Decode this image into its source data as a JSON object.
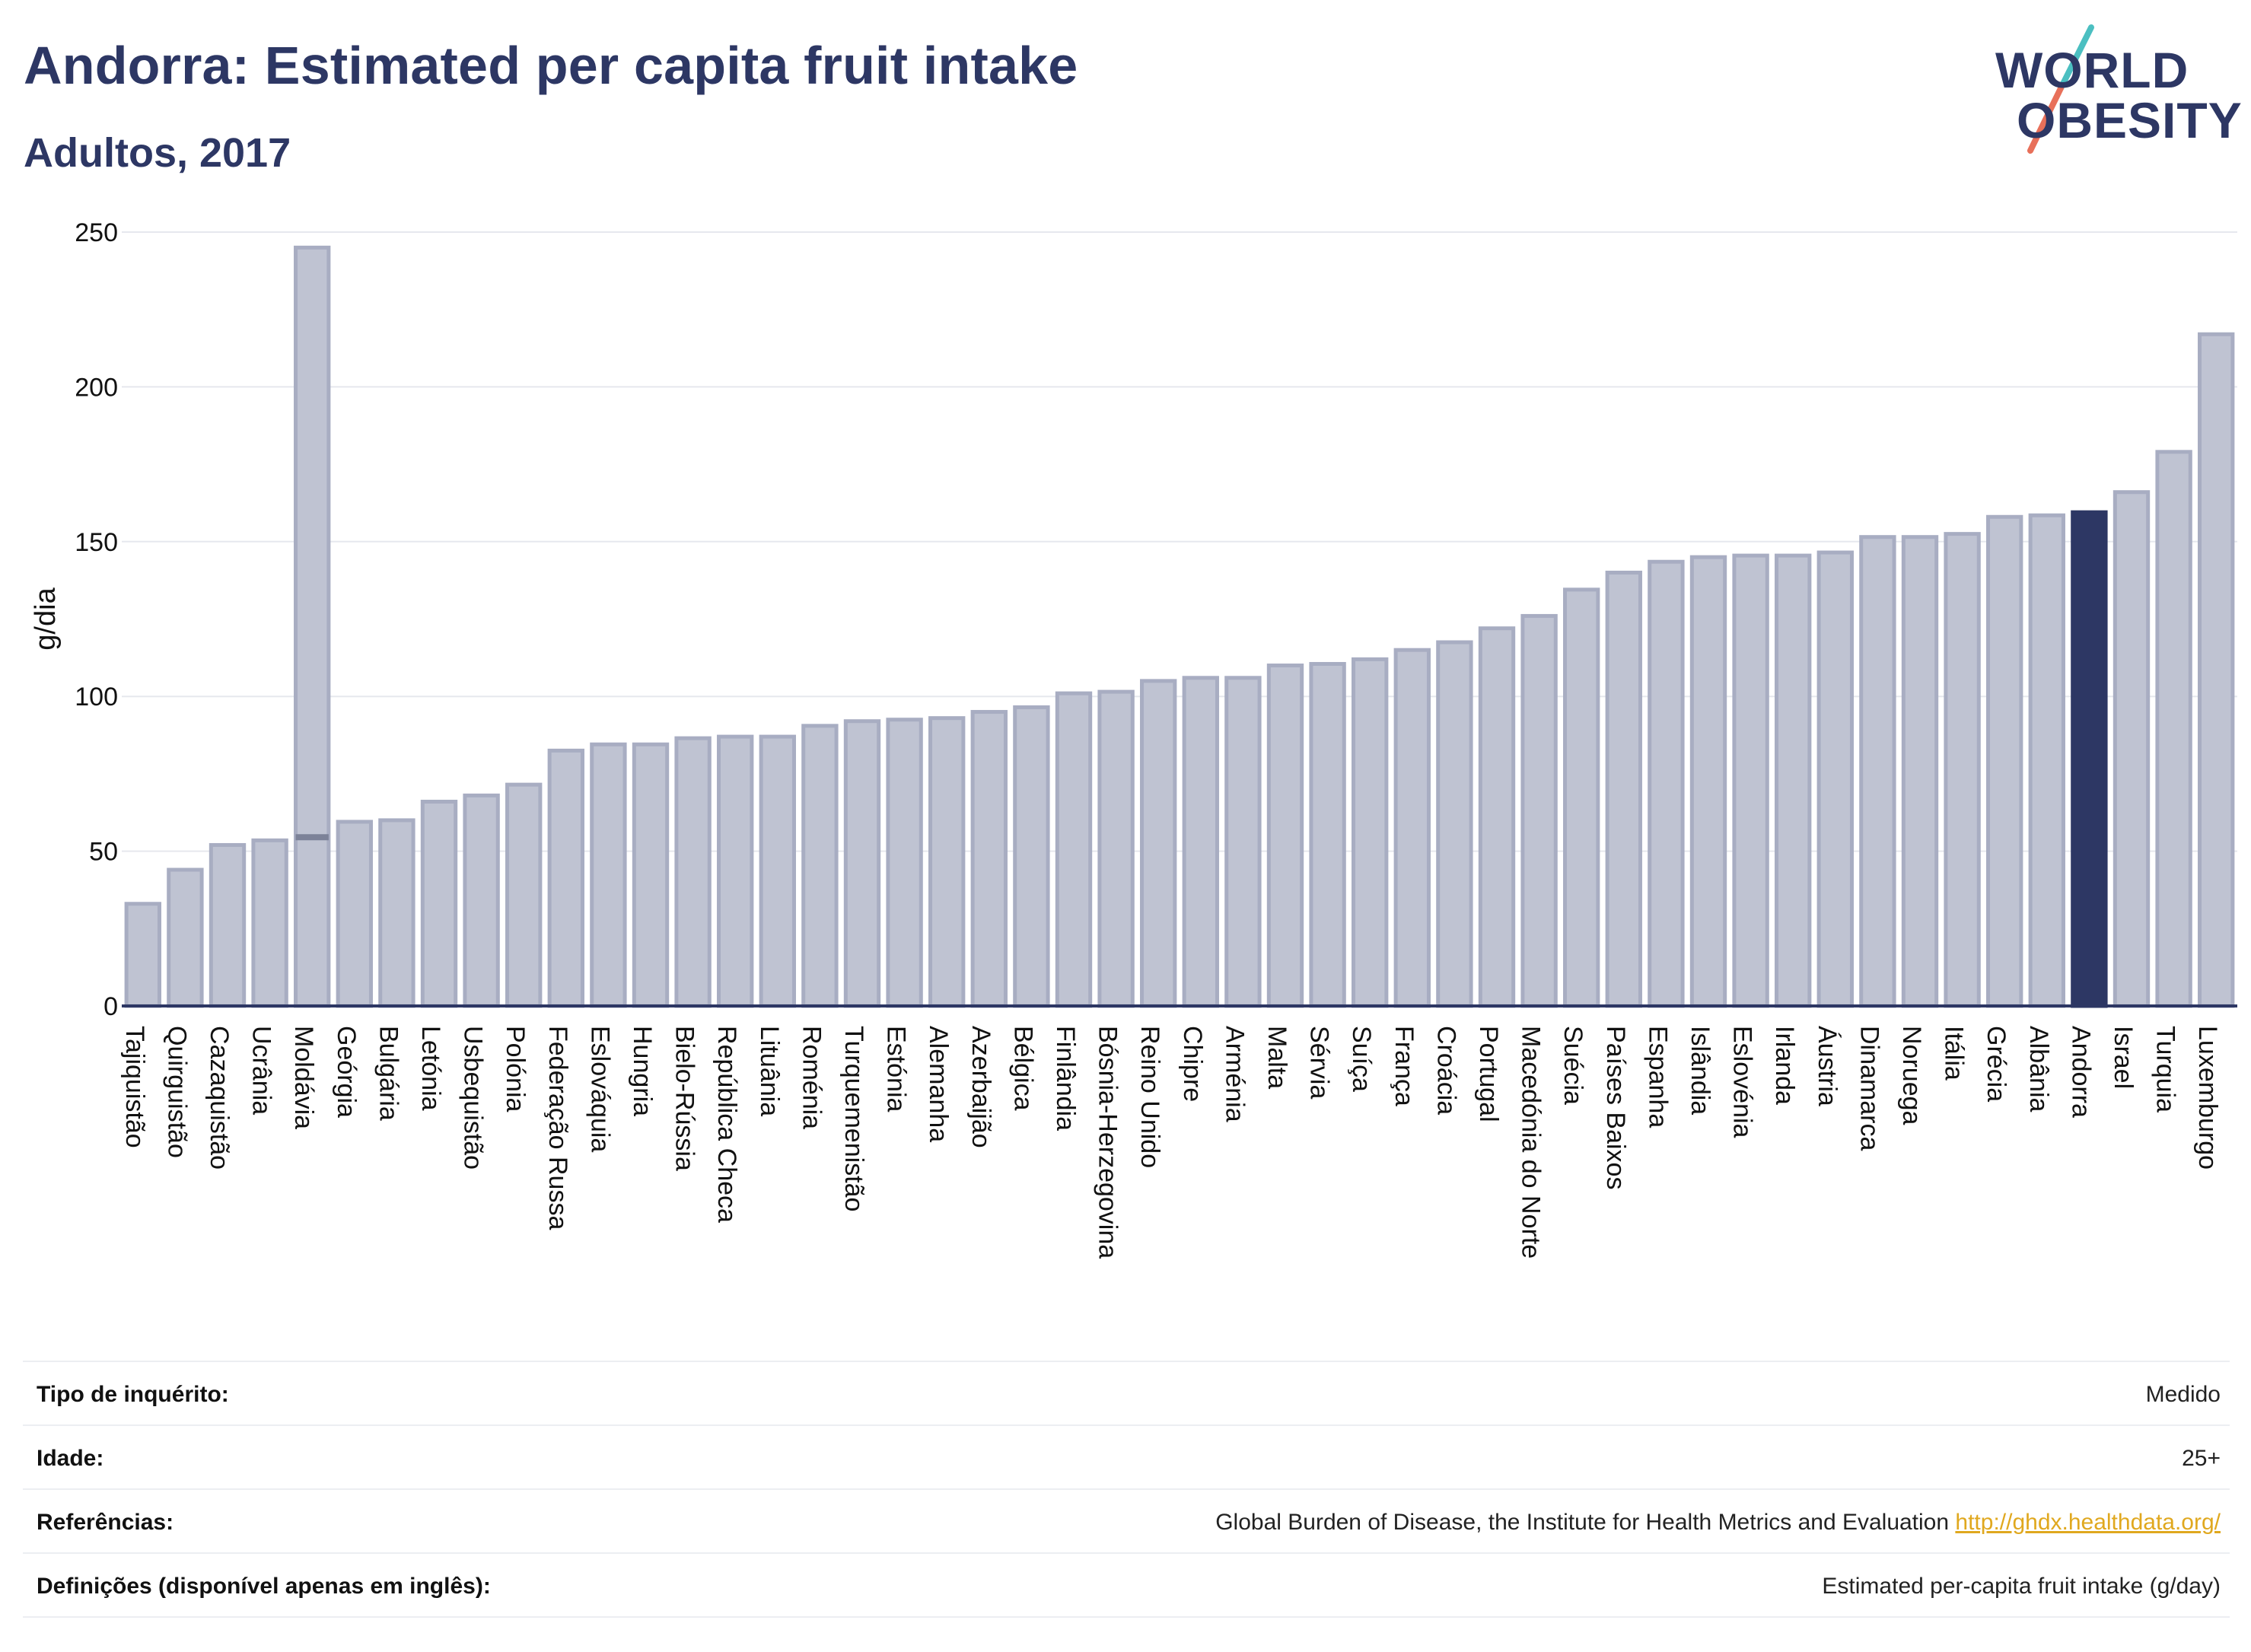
{
  "header": {
    "title": "Andorra: Estimated per capita fruit intake",
    "subtitle": "Adultos, 2017"
  },
  "logo": {
    "line1": "WORLD",
    "line2": "OBESITY",
    "slash_colors": [
      "#4bbfc1",
      "#e8705a"
    ]
  },
  "colors": {
    "bar_default": "#bfc3d2",
    "bar_border": "#a8adc2",
    "bar_highlight": "#2d3764",
    "axis": "#2d3764",
    "grid": "#e6e8ee",
    "range_marker": "#7c8298"
  },
  "chart_data": {
    "type": "bar",
    "title": "Andorra: Estimated per capita fruit intake",
    "subtitle": "Adultos, 2017",
    "xlabel": "",
    "ylabel": "g/dia",
    "ylim": [
      0,
      250
    ],
    "yticks": [
      0,
      50,
      100,
      150,
      200,
      250
    ],
    "grid": true,
    "highlight": "Andorra",
    "categories": [
      "Tajiquistão",
      "Quirguistão",
      "Cazaquistão",
      "Ucrânia",
      "Moldávia",
      "Geórgia",
      "Bulgária",
      "Letónia",
      "Usbequistão",
      "Polónia",
      "Federação Russa",
      "Eslováquia",
      "Hungria",
      "Bielo-Rússia",
      "República Checa",
      "Lituânia",
      "Roménia",
      "Turquemenistão",
      "Estónia",
      "Alemanha",
      "Azerbaijão",
      "Bélgica",
      "Finlândia",
      "Bósnia-Herzegovina",
      "Reino Unido",
      "Chipre",
      "Arménia",
      "Malta",
      "Sérvia",
      "Suíça",
      "França",
      "Croácia",
      "Portugal",
      "Macedónia do Norte",
      "Suécia",
      "Países Baixos",
      "Espanha",
      "Islândia",
      "Eslovénia",
      "Irlanda",
      "Áustria",
      "Dinamarca",
      "Noruega",
      "Itália",
      "Grécia",
      "Albânia",
      "Andorra",
      "Israel",
      "Turquia",
      "Luxemburgo"
    ],
    "values": [
      33,
      44,
      52,
      53.5,
      245,
      59.5,
      60,
      66,
      68,
      71.5,
      82.5,
      84.5,
      84.5,
      86.5,
      87,
      87,
      90.5,
      92,
      92.5,
      93,
      95,
      96.5,
      101,
      101.5,
      105,
      106,
      106,
      110,
      110.5,
      112,
      115,
      117.5,
      122,
      126,
      134.5,
      140,
      143.5,
      145,
      145.5,
      145.5,
      146.5,
      151.5,
      151.5,
      152.5,
      158,
      158.5,
      159.5,
      166,
      179,
      217
    ],
    "range_markers": [
      {
        "category": "Moldávia",
        "value": 54.5
      }
    ]
  },
  "info": {
    "rows": [
      {
        "label": "Tipo de inquérito:",
        "value": "Medido",
        "link": ""
      },
      {
        "label": "Idade:",
        "value": "25+",
        "link": ""
      },
      {
        "label": "Referências:",
        "value": "Global Burden of Disease, the Institute for Health Metrics and Evaluation",
        "link": "http://ghdx.healthdata.org/"
      },
      {
        "label": "Definições (disponível apenas em inglês):",
        "value": "Estimated per-capita fruit intake (g/day)",
        "link": ""
      }
    ]
  }
}
